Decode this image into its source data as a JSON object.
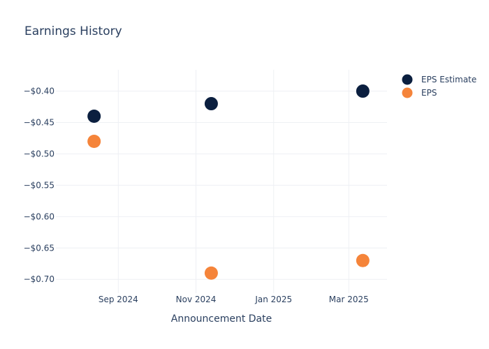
{
  "chart_data": {
    "type": "scatter",
    "title": "Earnings History",
    "xlabel": "Announcement Date",
    "ylabel": "",
    "x_ticks": [
      {
        "label": "Sep 2024",
        "date": "2024-09-01"
      },
      {
        "label": "Nov 2024",
        "date": "2024-11-01"
      },
      {
        "label": "Jan 2025",
        "date": "2025-01-01"
      },
      {
        "label": "Mar 2025",
        "date": "2025-03-01"
      }
    ],
    "y_ticks": [
      {
        "label": "−$0.40",
        "value": -0.4
      },
      {
        "label": "−$0.45",
        "value": -0.45
      },
      {
        "label": "−$0.50",
        "value": -0.5
      },
      {
        "label": "−$0.55",
        "value": -0.55
      },
      {
        "label": "−$0.60",
        "value": -0.6
      },
      {
        "label": "−$0.65",
        "value": -0.65
      },
      {
        "label": "−$0.70",
        "value": -0.7
      }
    ],
    "xlim": [
      "2024-07-14",
      "2025-03-31"
    ],
    "ylim": [
      -0.722,
      -0.366
    ],
    "grid": true,
    "legend_position": "top-right",
    "series": [
      {
        "name": "EPS Estimate",
        "color": "#0b1f3f",
        "points": [
          {
            "date": "2024-08-13",
            "value": -0.44
          },
          {
            "date": "2024-11-13",
            "value": -0.42
          },
          {
            "date": "2025-03-12",
            "value": -0.4
          }
        ]
      },
      {
        "name": "EPS",
        "color": "#f5843a",
        "points": [
          {
            "date": "2024-08-13",
            "value": -0.48
          },
          {
            "date": "2024-11-13",
            "value": -0.69
          },
          {
            "date": "2025-03-12",
            "value": -0.67
          }
        ]
      }
    ]
  }
}
